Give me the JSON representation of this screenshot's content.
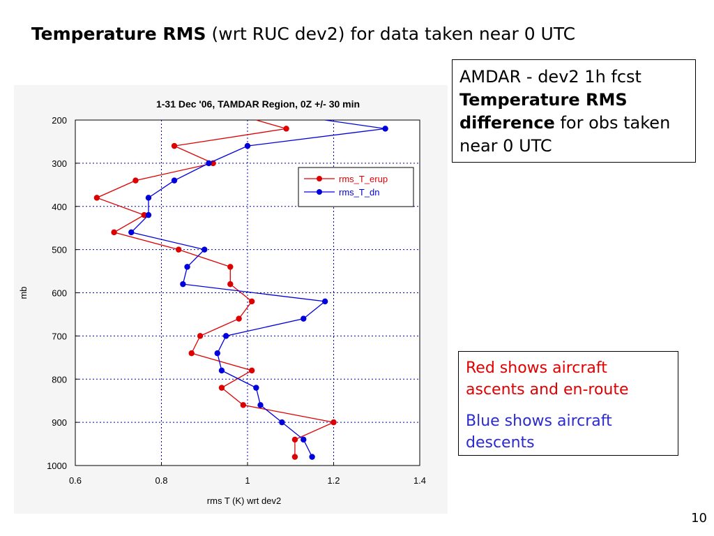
{
  "slide": {
    "title_bold": "Temperature RMS",
    "title_rest": " (wrt RUC dev2) for data taken near 0 UTC",
    "info_line1": "AMDAR - dev2 1h fcst",
    "info_bold": "Temperature RMS difference",
    "info_rest": " for obs taken near 0 UTC",
    "note_red": "Red shows aircraft ascents and en-route",
    "note_blue": "Blue shows aircraft descents",
    "page_number": "10"
  },
  "colors": {
    "red": "#dd0000",
    "blue": "#0000dd",
    "grid": "#0000aa",
    "note_red": "#e00000",
    "note_blue": "#2a2ad0"
  },
  "chart_data": {
    "type": "line",
    "title": "1-31 Dec '06, TAMDAR Region, 0Z +/- 30 min",
    "xlabel": "rms T (K) wrt dev2",
    "ylabel": "mb",
    "xlim": [
      0.6,
      1.4
    ],
    "ylim": [
      1000,
      200
    ],
    "y_inverted": true,
    "x_ticks": [
      "0.6",
      "0.8",
      "1",
      "1.2",
      "1.4"
    ],
    "y_ticks": [
      "200",
      "300",
      "400",
      "500",
      "600",
      "700",
      "800",
      "900",
      "1000"
    ],
    "grid": true,
    "legend_position": "upper-right",
    "series": [
      {
        "name": "rms_T_erup",
        "color": "#dd0000",
        "points": [
          {
            "x": 1.02,
            "y": 200
          },
          {
            "x": 1.09,
            "y": 220
          },
          {
            "x": 0.83,
            "y": 260
          },
          {
            "x": 0.92,
            "y": 300
          },
          {
            "x": 0.74,
            "y": 340
          },
          {
            "x": 0.65,
            "y": 380
          },
          {
            "x": 0.76,
            "y": 420
          },
          {
            "x": 0.69,
            "y": 460
          },
          {
            "x": 0.84,
            "y": 500
          },
          {
            "x": 0.96,
            "y": 540
          },
          {
            "x": 0.96,
            "y": 580
          },
          {
            "x": 1.01,
            "y": 620
          },
          {
            "x": 0.98,
            "y": 660
          },
          {
            "x": 0.89,
            "y": 700
          },
          {
            "x": 0.87,
            "y": 740
          },
          {
            "x": 1.01,
            "y": 780
          },
          {
            "x": 0.94,
            "y": 820
          },
          {
            "x": 0.99,
            "y": 860
          },
          {
            "x": 1.2,
            "y": 900
          },
          {
            "x": 1.11,
            "y": 940
          },
          {
            "x": 1.11,
            "y": 980
          }
        ]
      },
      {
        "name": "rms_T_dn",
        "color": "#0000dd",
        "points": [
          {
            "x": 1.18,
            "y": 200
          },
          {
            "x": 1.32,
            "y": 220
          },
          {
            "x": 1.0,
            "y": 260
          },
          {
            "x": 0.91,
            "y": 300
          },
          {
            "x": 0.83,
            "y": 340
          },
          {
            "x": 0.77,
            "y": 380
          },
          {
            "x": 0.77,
            "y": 420
          },
          {
            "x": 0.73,
            "y": 460
          },
          {
            "x": 0.9,
            "y": 500
          },
          {
            "x": 0.86,
            "y": 540
          },
          {
            "x": 0.85,
            "y": 580
          },
          {
            "x": 1.18,
            "y": 620
          },
          {
            "x": 1.13,
            "y": 660
          },
          {
            "x": 0.95,
            "y": 700
          },
          {
            "x": 0.93,
            "y": 740
          },
          {
            "x": 0.94,
            "y": 780
          },
          {
            "x": 1.02,
            "y": 820
          },
          {
            "x": 1.03,
            "y": 860
          },
          {
            "x": 1.08,
            "y": 900
          },
          {
            "x": 1.13,
            "y": 940
          },
          {
            "x": 1.15,
            "y": 980
          }
        ]
      }
    ]
  }
}
